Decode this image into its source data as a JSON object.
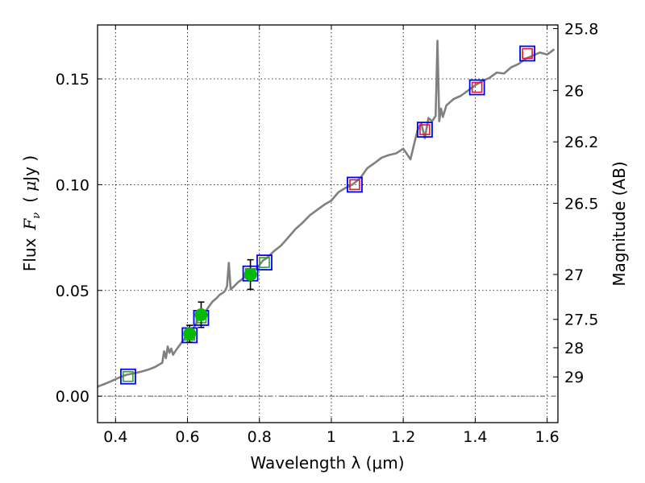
{
  "chart_data": {
    "type": "scatter",
    "title": "",
    "xlabel": "Wavelength  λ (μm)",
    "ylabel": "Flux  F_ν  ( μJy )",
    "ylabel_parts": [
      "Flux",
      "F",
      "ν",
      "( ",
      "μ",
      "Jy )"
    ],
    "y2label": "Magnitude (AB)",
    "xlim": [
      0.35,
      1.63
    ],
    "ylim": [
      -0.0125,
      0.1755
    ],
    "grid": true,
    "xticks": [
      0.4,
      0.6,
      0.8,
      1.0,
      1.2,
      1.4,
      1.6
    ],
    "xtick_labels": [
      "0.4",
      "0.6",
      "0.8",
      "1",
      "1.2",
      "1.4",
      "1.6"
    ],
    "yticks": [
      0.0,
      0.05,
      0.1,
      0.15
    ],
    "ytick_labels": [
      "0.00",
      "0.05",
      "0.10",
      "0.15"
    ],
    "y2ticks": [
      {
        "mag": 25.8,
        "label": "25.8"
      },
      {
        "mag": 26.0,
        "label": "26"
      },
      {
        "mag": 26.2,
        "label": "26.2"
      },
      {
        "mag": 26.5,
        "label": "26.5"
      },
      {
        "mag": 27.0,
        "label": "27"
      },
      {
        "mag": 27.5,
        "label": "27.5"
      },
      {
        "mag": 28.0,
        "label": "28"
      },
      {
        "mag": 29.0,
        "label": "29"
      }
    ],
    "colors": {
      "spectrum": "#808080",
      "model_box": "#0000ff",
      "observed": "#00bb00",
      "optical_inner": "#2e9c2e",
      "nir_inner": "#e0142e"
    },
    "series": [
      {
        "name": "model spectrum",
        "kind": "line",
        "x": [
          0.35,
          0.37,
          0.39,
          0.41,
          0.43,
          0.45,
          0.47,
          0.49,
          0.51,
          0.52,
          0.53,
          0.535,
          0.54,
          0.545,
          0.55,
          0.555,
          0.56,
          0.57,
          0.58,
          0.59,
          0.6,
          0.61,
          0.62,
          0.63,
          0.64,
          0.65,
          0.66,
          0.67,
          0.68,
          0.69,
          0.7,
          0.705,
          0.71,
          0.715,
          0.72,
          0.73,
          0.74,
          0.75,
          0.76,
          0.77,
          0.78,
          0.79,
          0.8,
          0.81,
          0.82,
          0.84,
          0.86,
          0.88,
          0.9,
          0.92,
          0.94,
          0.96,
          0.98,
          1.0,
          1.02,
          1.04,
          1.06,
          1.08,
          1.1,
          1.12,
          1.14,
          1.16,
          1.18,
          1.2,
          1.22,
          1.24,
          1.25,
          1.26,
          1.27,
          1.28,
          1.29,
          1.295,
          1.3,
          1.305,
          1.31,
          1.32,
          1.34,
          1.36,
          1.38,
          1.4,
          1.42,
          1.44,
          1.46,
          1.48,
          1.5,
          1.52,
          1.54,
          1.56,
          1.58,
          1.6,
          1.62
        ],
        "y": [
          0.0045,
          0.0058,
          0.0072,
          0.0088,
          0.0101,
          0.0108,
          0.0115,
          0.0125,
          0.0138,
          0.0148,
          0.0158,
          0.0212,
          0.018,
          0.0235,
          0.0205,
          0.0225,
          0.0196,
          0.0222,
          0.0245,
          0.0268,
          0.029,
          0.0308,
          0.033,
          0.0362,
          0.0385,
          0.04,
          0.0425,
          0.0448,
          0.0462,
          0.048,
          0.049,
          0.05,
          0.052,
          0.063,
          0.0505,
          0.052,
          0.0538,
          0.055,
          0.0565,
          0.0578,
          0.0592,
          0.06,
          0.062,
          0.0642,
          0.0652,
          0.0685,
          0.0712,
          0.075,
          0.079,
          0.082,
          0.0855,
          0.088,
          0.0905,
          0.0925,
          0.0965,
          0.0985,
          0.1002,
          0.103,
          0.1078,
          0.1102,
          0.1128,
          0.114,
          0.1148,
          0.117,
          0.112,
          0.126,
          0.129,
          0.122,
          0.1315,
          0.13,
          0.1325,
          0.168,
          0.13,
          0.136,
          0.132,
          0.1375,
          0.1405,
          0.142,
          0.1445,
          0.147,
          0.149,
          0.1505,
          0.153,
          0.1525,
          0.1555,
          0.157,
          0.1595,
          0.161,
          0.1625,
          0.1615,
          0.164
        ]
      },
      {
        "name": "model photometry (optical)",
        "kind": "box",
        "x": [
          0.435,
          0.606,
          0.638,
          0.775,
          0.814
        ],
        "y": [
          0.0093,
          0.0288,
          0.037,
          0.058,
          0.0632
        ]
      },
      {
        "name": "model photometry (near-IR)",
        "kind": "box",
        "x": [
          1.065,
          1.26,
          1.405,
          1.545
        ],
        "y": [
          0.1,
          0.126,
          0.146,
          0.162
        ]
      },
      {
        "name": "observed photometry",
        "kind": "point",
        "x": [
          0.606,
          0.638,
          0.775
        ],
        "y": [
          0.0295,
          0.0385,
          0.0575
        ],
        "yerr": [
          0.004,
          0.006,
          0.007
        ]
      }
    ],
    "hline": {
      "y": 0.0,
      "style": "dash-dot"
    }
  }
}
